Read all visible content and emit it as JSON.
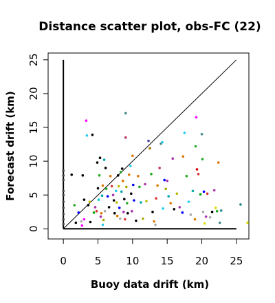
{
  "chart_data": {
    "type": "scatter",
    "title": "Distance scatter plot, obs-FC (22)",
    "xlabel": "Buoy data drift (km)",
    "ylabel": "Forecast drift (km)",
    "xlim": [
      -2.2,
      26.8
    ],
    "ylim": [
      -1.5,
      26.0
    ],
    "xticks": [
      0,
      5,
      10,
      15,
      20,
      25
    ],
    "yticks": [
      0,
      5,
      10,
      15,
      20,
      25
    ],
    "grid": false,
    "reference_lines": [
      {
        "name": "one-to-one",
        "x": [
          0,
          25
        ],
        "y": [
          0,
          25
        ]
      },
      {
        "name": "x-axis-baseline",
        "x": [
          0,
          25
        ],
        "y": [
          0,
          0
        ]
      },
      {
        "name": "y-axis-baseline",
        "x": [
          0,
          0
        ],
        "y": [
          0,
          25
        ]
      }
    ],
    "points": [
      {
        "x": 0.0,
        "y": 8.6,
        "color": "#444444"
      },
      {
        "x": 0.0,
        "y": 7.9,
        "color": "#444444"
      },
      {
        "x": 0.0,
        "y": 7.2,
        "color": "#444444"
      },
      {
        "x": 0.0,
        "y": 5.6,
        "color": "#444444"
      },
      {
        "x": 0.0,
        "y": 5.0,
        "color": "#444444"
      },
      {
        "x": 0.0,
        "y": 4.0,
        "color": "#444444"
      },
      {
        "x": 0.0,
        "y": 3.1,
        "color": "#444444"
      },
      {
        "x": 0.0,
        "y": 2.2,
        "color": "#444444"
      },
      {
        "x": 0.0,
        "y": 1.4,
        "color": "#444444"
      },
      {
        "x": 0.0,
        "y": 0.7,
        "color": "#444444"
      },
      {
        "x": 1.2,
        "y": 8.0,
        "color": "#000000"
      },
      {
        "x": 1.6,
        "y": 3.5,
        "color": "#22aa22"
      },
      {
        "x": 1.8,
        "y": 0.9,
        "color": "#000000"
      },
      {
        "x": 2.2,
        "y": 2.4,
        "color": "#0000ff"
      },
      {
        "x": 2.6,
        "y": 1.1,
        "color": "#aaaaaa"
      },
      {
        "x": 2.7,
        "y": 0.5,
        "color": "#ff00ff"
      },
      {
        "x": 2.8,
        "y": 7.9,
        "color": "#000000"
      },
      {
        "x": 3.0,
        "y": 4.3,
        "color": "#000000"
      },
      {
        "x": 3.0,
        "y": 1.4,
        "color": "#ff00ff"
      },
      {
        "x": 3.3,
        "y": 16.0,
        "color": "#ff00ff"
      },
      {
        "x": 3.4,
        "y": 13.8,
        "color": "#22ccee"
      },
      {
        "x": 3.6,
        "y": 3.5,
        "color": "#000000"
      },
      {
        "x": 3.8,
        "y": 4.0,
        "color": "#bbbb00"
      },
      {
        "x": 3.9,
        "y": 1.0,
        "color": "#000000"
      },
      {
        "x": 4.2,
        "y": 13.9,
        "color": "#000000"
      },
      {
        "x": 4.4,
        "y": 2.4,
        "color": "#00aa00"
      },
      {
        "x": 4.6,
        "y": 3.2,
        "color": "#aa33aa"
      },
      {
        "x": 4.8,
        "y": 2.6,
        "color": "#dd3333"
      },
      {
        "x": 4.9,
        "y": 9.8,
        "color": "#000000"
      },
      {
        "x": 5.0,
        "y": 6.0,
        "color": "#000000"
      },
      {
        "x": 5.1,
        "y": 4.3,
        "color": "#00cccc"
      },
      {
        "x": 5.2,
        "y": 7.9,
        "color": "#22aa22"
      },
      {
        "x": 5.3,
        "y": 10.5,
        "color": "#000000"
      },
      {
        "x": 5.4,
        "y": 1.8,
        "color": "#aa33aa"
      },
      {
        "x": 5.5,
        "y": 2.3,
        "color": "#dd7700"
      },
      {
        "x": 5.6,
        "y": 4.9,
        "color": "#00aaaa"
      },
      {
        "x": 5.7,
        "y": 0.6,
        "color": "#22ccee"
      },
      {
        "x": 5.7,
        "y": 6.4,
        "color": "#dd7700"
      },
      {
        "x": 5.8,
        "y": 1.3,
        "color": "#aaaa00"
      },
      {
        "x": 5.9,
        "y": 10.2,
        "color": "#00aaaa"
      },
      {
        "x": 6.0,
        "y": 2.6,
        "color": "#aaaaaa"
      },
      {
        "x": 6.1,
        "y": 9.0,
        "color": "#000000"
      },
      {
        "x": 6.2,
        "y": 5.9,
        "color": "#22aa22"
      },
      {
        "x": 6.4,
        "y": 4.8,
        "color": "#0000ff"
      },
      {
        "x": 6.6,
        "y": 3.2,
        "color": "#000000"
      },
      {
        "x": 6.8,
        "y": 7.8,
        "color": "#dd7700"
      },
      {
        "x": 7.0,
        "y": 6.3,
        "color": "#dd3333"
      },
      {
        "x": 7.2,
        "y": 5.0,
        "color": "#aa33aa"
      },
      {
        "x": 7.3,
        "y": 4.2,
        "color": "#000000"
      },
      {
        "x": 7.4,
        "y": 2.3,
        "color": "#000000"
      },
      {
        "x": 7.6,
        "y": 5.6,
        "color": "#22ccee"
      },
      {
        "x": 7.7,
        "y": 3.9,
        "color": "#bbbb00"
      },
      {
        "x": 7.8,
        "y": 1.9,
        "color": "#dd7700"
      },
      {
        "x": 7.9,
        "y": 7.9,
        "color": "#000000"
      },
      {
        "x": 8.0,
        "y": 6.3,
        "color": "#bbbb00"
      },
      {
        "x": 8.1,
        "y": 3.1,
        "color": "#0000ff"
      },
      {
        "x": 8.2,
        "y": 1.5,
        "color": "#aaaaaa"
      },
      {
        "x": 8.3,
        "y": 8.4,
        "color": "#22aa22"
      },
      {
        "x": 8.4,
        "y": 5.5,
        "color": "#00aaaa"
      },
      {
        "x": 8.5,
        "y": 8.9,
        "color": "#000000"
      },
      {
        "x": 8.6,
        "y": 7.1,
        "color": "#dd7700"
      },
      {
        "x": 8.7,
        "y": 2.5,
        "color": "#aa33aa"
      },
      {
        "x": 8.8,
        "y": 4.4,
        "color": "#000000"
      },
      {
        "x": 8.9,
        "y": 1.4,
        "color": "#dd3333"
      },
      {
        "x": 9.0,
        "y": 17.1,
        "color": "#448888"
      },
      {
        "x": 9.0,
        "y": 13.5,
        "color": "#bb3366"
      },
      {
        "x": 9.1,
        "y": 6.2,
        "color": "#aaaa00"
      },
      {
        "x": 9.2,
        "y": 3.8,
        "color": "#22aa22"
      },
      {
        "x": 9.3,
        "y": 2.3,
        "color": "#000000"
      },
      {
        "x": 9.5,
        "y": 8.0,
        "color": "#dd7700"
      },
      {
        "x": 9.7,
        "y": 9.3,
        "color": "#22ccee"
      },
      {
        "x": 9.8,
        "y": 5.2,
        "color": "#000000"
      },
      {
        "x": 9.9,
        "y": 2.6,
        "color": "#aa33aa"
      },
      {
        "x": 10.0,
        "y": 10.8,
        "color": "#dd7700"
      },
      {
        "x": 10.1,
        "y": 6.5,
        "color": "#0000ff"
      },
      {
        "x": 10.2,
        "y": 4.2,
        "color": "#0000ff"
      },
      {
        "x": 10.5,
        "y": 1.2,
        "color": "#000000"
      },
      {
        "x": 10.8,
        "y": 7.8,
        "color": "#dd7700"
      },
      {
        "x": 11.0,
        "y": 6.2,
        "color": "#22aa22"
      },
      {
        "x": 11.2,
        "y": 3.9,
        "color": "#00aaaa"
      },
      {
        "x": 11.5,
        "y": 1.5,
        "color": "#aaaa00"
      },
      {
        "x": 11.8,
        "y": 6.6,
        "color": "#aa33aa"
      },
      {
        "x": 12.0,
        "y": 4.1,
        "color": "#bbbb00"
      },
      {
        "x": 12.3,
        "y": 13.0,
        "color": "#4444aa"
      },
      {
        "x": 12.5,
        "y": 11.9,
        "color": "#aa7700"
      },
      {
        "x": 12.7,
        "y": 8.1,
        "color": "#22aa22"
      },
      {
        "x": 12.9,
        "y": 2.5,
        "color": "#000000"
      },
      {
        "x": 13.1,
        "y": 1.1,
        "color": "#dd7700"
      },
      {
        "x": 13.3,
        "y": 0.6,
        "color": "#aaaaaa"
      },
      {
        "x": 13.4,
        "y": 4.5,
        "color": "#dd3333"
      },
      {
        "x": 13.6,
        "y": 6.4,
        "color": "#dd7700"
      },
      {
        "x": 13.9,
        "y": 9.0,
        "color": "#bb3366"
      },
      {
        "x": 14.1,
        "y": 12.6,
        "color": "#448888"
      },
      {
        "x": 14.3,
        "y": 12.8,
        "color": "#22ccee"
      },
      {
        "x": 14.4,
        "y": 3.0,
        "color": "#22ccee"
      },
      {
        "x": 14.6,
        "y": 7.2,
        "color": "#0000ff"
      },
      {
        "x": 14.8,
        "y": 5.9,
        "color": "#aaaa00"
      },
      {
        "x": 15.0,
        "y": 7.1,
        "color": "#aa33aa"
      },
      {
        "x": 15.2,
        "y": 4.8,
        "color": "#00aaaa"
      },
      {
        "x": 15.5,
        "y": 3.8,
        "color": "#dd7700"
      },
      {
        "x": 15.8,
        "y": 10.4,
        "color": "#aa33aa"
      },
      {
        "x": 16.0,
        "y": 2.9,
        "color": "#000000"
      },
      {
        "x": 16.4,
        "y": 5.2,
        "color": "#bbbb00"
      },
      {
        "x": 16.8,
        "y": 3.2,
        "color": "#aa33aa"
      },
      {
        "x": 17.2,
        "y": 2.4,
        "color": "#0000ff"
      },
      {
        "x": 17.3,
        "y": 10.7,
        "color": "#dd7700"
      },
      {
        "x": 17.5,
        "y": 14.2,
        "color": "#22ccee"
      },
      {
        "x": 17.8,
        "y": 7.8,
        "color": "#22aa22"
      },
      {
        "x": 18.1,
        "y": 4.0,
        "color": "#22ccee"
      },
      {
        "x": 18.4,
        "y": 2.1,
        "color": "#aaaaaa"
      },
      {
        "x": 18.7,
        "y": 5.6,
        "color": "#00aaaa"
      },
      {
        "x": 19.0,
        "y": 1.4,
        "color": "#dd7700"
      },
      {
        "x": 19.1,
        "y": 12.2,
        "color": "#22aa22"
      },
      {
        "x": 19.2,
        "y": 16.5,
        "color": "#ff00ff"
      },
      {
        "x": 19.3,
        "y": 8.8,
        "color": "#dd0000"
      },
      {
        "x": 19.5,
        "y": 8.1,
        "color": "#dd3333"
      },
      {
        "x": 19.8,
        "y": 5.1,
        "color": "#00aa00"
      },
      {
        "x": 20.0,
        "y": 14.0,
        "color": "#448888"
      },
      {
        "x": 20.1,
        "y": 10.3,
        "color": "#22aa22"
      },
      {
        "x": 20.2,
        "y": 2.5,
        "color": "#aaaaaa"
      },
      {
        "x": 20.3,
        "y": 5.5,
        "color": "#0000ff"
      },
      {
        "x": 20.4,
        "y": 0.8,
        "color": "#dddd00"
      },
      {
        "x": 20.6,
        "y": 1.8,
        "color": "#aa33aa"
      },
      {
        "x": 20.8,
        "y": 5.2,
        "color": "#dd3333"
      },
      {
        "x": 21.2,
        "y": 1.7,
        "color": "#aaaaaa"
      },
      {
        "x": 21.5,
        "y": 2.5,
        "color": "#000000"
      },
      {
        "x": 21.8,
        "y": 5.7,
        "color": "#aa33aa"
      },
      {
        "x": 22.0,
        "y": 3.1,
        "color": "#dddd00"
      },
      {
        "x": 22.2,
        "y": 2.6,
        "color": "#22aa22"
      },
      {
        "x": 22.4,
        "y": 9.8,
        "color": "#dd7700"
      },
      {
        "x": 22.6,
        "y": 0.9,
        "color": "#448888"
      },
      {
        "x": 22.8,
        "y": 2.7,
        "color": "#228888"
      },
      {
        "x": 25.6,
        "y": 3.6,
        "color": "#228888"
      },
      {
        "x": 26.6,
        "y": 0.9,
        "color": "#dddd00"
      }
    ]
  }
}
